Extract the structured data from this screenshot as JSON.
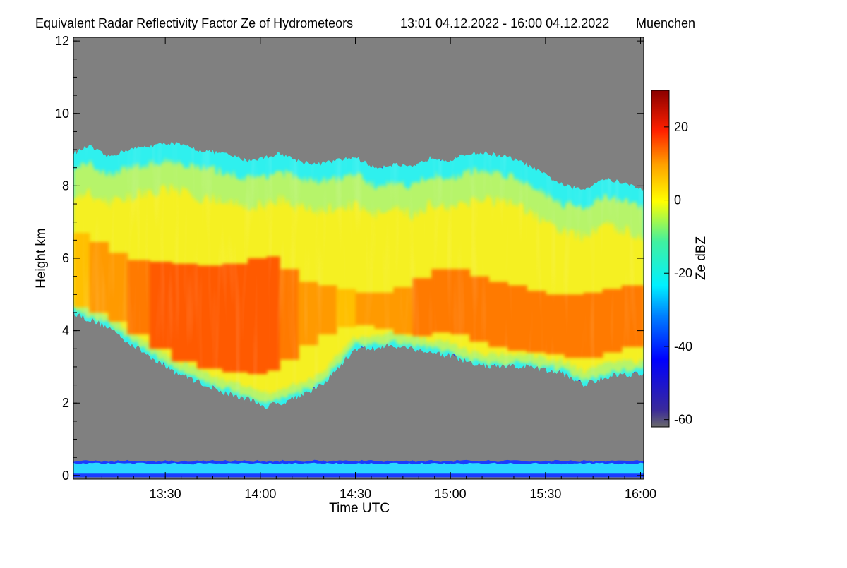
{
  "chart_data": {
    "type": "heatmap",
    "title": "Equivalent Radar Reflectivity Factor Ze of Hydrometeors",
    "period": "13:01 04.12.2022 - 16:00 04.12.2022",
    "location": "Muenchen",
    "xlabel": "Time UTC",
    "ylabel": "Height km",
    "x_range_min": [
      781,
      961
    ],
    "xticks": [
      {
        "value": 810,
        "label": "13:30"
      },
      {
        "value": 840,
        "label": "14:00"
      },
      {
        "value": 870,
        "label": "14:30"
      },
      {
        "value": 900,
        "label": "15:00"
      },
      {
        "value": 930,
        "label": "15:30"
      },
      {
        "value": 960,
        "label": "16:00"
      }
    ],
    "ylim": [
      -0.1,
      12.1
    ],
    "yticks": [
      0,
      2,
      4,
      6,
      8,
      10,
      12
    ],
    "colorbar": {
      "label": "Ze dBZ",
      "range": [
        -62,
        30
      ],
      "ticks": [
        20,
        0,
        -20,
        -40,
        -60
      ]
    },
    "no_signal_color": "#808080",
    "cloud": {
      "times_min": [
        781,
        786,
        792,
        798,
        805,
        812,
        820,
        828,
        836,
        842,
        846,
        852,
        858,
        864,
        870,
        876,
        882,
        888,
        894,
        900,
        906,
        912,
        918,
        924,
        930,
        936,
        942,
        948,
        954,
        961
      ],
      "top_km": [
        8.9,
        9.1,
        8.8,
        9.0,
        9.1,
        9.2,
        9.0,
        8.9,
        8.7,
        8.8,
        8.9,
        8.7,
        8.6,
        8.7,
        8.8,
        8.5,
        8.6,
        8.5,
        8.8,
        8.7,
        8.9,
        8.9,
        8.8,
        8.6,
        8.3,
        8.0,
        7.9,
        8.2,
        8.1,
        7.9
      ],
      "base_km": [
        4.5,
        4.3,
        4.1,
        3.7,
        3.3,
        2.9,
        2.6,
        2.3,
        2.1,
        1.9,
        2.0,
        2.2,
        2.4,
        2.9,
        3.5,
        3.5,
        3.6,
        3.5,
        3.4,
        3.3,
        3.1,
        3.0,
        3.0,
        3.0,
        2.9,
        2.8,
        2.5,
        2.7,
        2.8,
        2.8
      ],
      "core_top_km": [
        6.8,
        6.6,
        6.3,
        6.0,
        5.9,
        5.9,
        5.8,
        5.8,
        5.9,
        6.1,
        6.0,
        5.4,
        5.3,
        5.2,
        5.1,
        5.0,
        5.1,
        5.3,
        5.6,
        5.8,
        5.6,
        5.4,
        5.3,
        5.2,
        5.0,
        5.0,
        5.0,
        5.1,
        5.2,
        5.3
      ],
      "core_base_km": [
        4.7,
        4.6,
        4.4,
        4.1,
        3.7,
        3.3,
        3.0,
        2.9,
        2.8,
        2.8,
        3.0,
        3.4,
        3.8,
        4.0,
        4.2,
        4.1,
        4.0,
        3.8,
        3.9,
        4.0,
        3.8,
        3.6,
        3.5,
        3.4,
        3.4,
        3.3,
        3.2,
        3.3,
        3.5,
        3.6
      ],
      "core_dbz": [
        4,
        6,
        8,
        10,
        12,
        12,
        13,
        13,
        12,
        12,
        10,
        8,
        6,
        5,
        6,
        7,
        8,
        9,
        10,
        10,
        11,
        11,
        10,
        10,
        10,
        10,
        9,
        9,
        10,
        10
      ]
    },
    "ground_clutter_layer_km": [
      0.05,
      0.35
    ]
  }
}
